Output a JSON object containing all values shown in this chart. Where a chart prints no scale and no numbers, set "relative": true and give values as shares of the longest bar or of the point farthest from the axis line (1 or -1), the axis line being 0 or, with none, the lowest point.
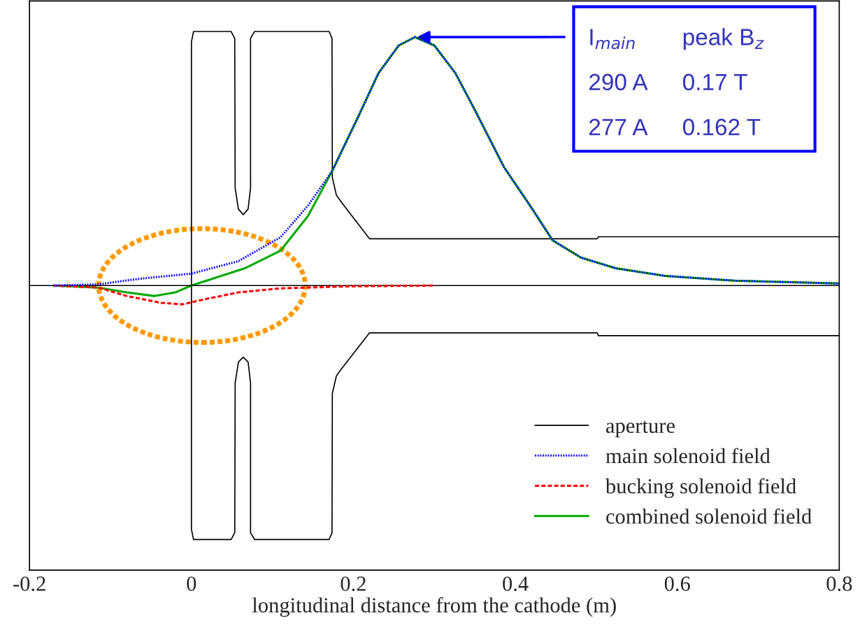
{
  "chart_data": {
    "type": "line",
    "relative": true,
    "xlabel": "longitudinal distance from the cathode (m)",
    "xlim": [
      -0.2,
      0.8
    ],
    "xticks": [
      -0.2,
      0,
      0.2,
      0.4,
      0.6,
      0.8
    ],
    "legend": "bottom right",
    "grid": false,
    "tick_labels": "x",
    "series": [
      {
        "name": "aperture",
        "color": "#000000",
        "line_style": "solid",
        "x": [
          0.8,
          0.5026,
          0.501,
          0.22,
          0.185,
          0.179,
          0.174,
          0.1736,
          0.17,
          0.078,
          0.073,
          0.073,
          0.07,
          0.064,
          0.058,
          0.054,
          0.0535,
          0.049,
          0.0026,
          0,
          0,
          0,
          0.0026,
          0.049,
          0.0535,
          0.054,
          0.058,
          0.064,
          0.07,
          0.073,
          0.073,
          0.078,
          0.17,
          0.1736,
          0.174,
          0.179,
          0.185,
          0.22,
          0.501,
          0.5026,
          0.8
        ],
        "values": [
          -0.197,
          -0.197,
          -0.186,
          -0.186,
          -0.329,
          -0.356,
          -0.425,
          -0.973,
          -1.0,
          -1.0,
          -0.973,
          -0.384,
          -0.301,
          -0.282,
          -0.301,
          -0.384,
          -0.973,
          -1.0,
          -1.0,
          -0.959,
          0,
          0.959,
          1.0,
          1.0,
          0.973,
          0.384,
          0.301,
          0.279,
          0.301,
          0.384,
          0.973,
          1.0,
          1.0,
          0.973,
          0.425,
          0.356,
          0.329,
          0.184,
          0.184,
          0.192,
          0.192
        ]
      },
      {
        "name": "main solenoid field",
        "color": "#0000ff",
        "line_style": "dotted",
        "x": [
          -0.17,
          -0.115,
          -0.063,
          0,
          0.058,
          0.11,
          0.144,
          0.174,
          0.205,
          0.231,
          0.256,
          0.276,
          0.3,
          0.326,
          0.351,
          0.386,
          0.421,
          0.446,
          0.481,
          0.524,
          0.585,
          0.671,
          0.8
        ],
        "values": [
          0,
          0.005,
          0.027,
          0.047,
          0.096,
          0.19,
          0.315,
          0.452,
          0.658,
          0.836,
          0.945,
          0.978,
          0.945,
          0.836,
          0.685,
          0.466,
          0.301,
          0.178,
          0.11,
          0.068,
          0.038,
          0.019,
          0.008
        ]
      },
      {
        "name": "bucking solenoid field",
        "color": "#ff0000",
        "line_style": "dashed",
        "x": [
          -0.17,
          -0.115,
          -0.08,
          -0.037,
          -0.011,
          0.015,
          0.058,
          0.11,
          0.196,
          0.3
        ],
        "values": [
          0,
          -0.008,
          -0.041,
          -0.068,
          -0.074,
          -0.055,
          -0.027,
          -0.011,
          -0.003,
          0
        ]
      },
      {
        "name": "combined solenoid field",
        "color": "#00aa00",
        "line_style": "solid",
        "x": [
          -0.17,
          -0.115,
          -0.08,
          -0.046,
          -0.02,
          0,
          0.032,
          0.066,
          0.11,
          0.144,
          0.174,
          0.205,
          0.231,
          0.256,
          0.276,
          0.3,
          0.326,
          0.351,
          0.386,
          0.421,
          0.446,
          0.481,
          0.524,
          0.585,
          0.671,
          0.8
        ],
        "values": [
          0,
          -0.008,
          -0.027,
          -0.041,
          -0.027,
          0,
          0.033,
          0.068,
          0.137,
          0.274,
          0.452,
          0.658,
          0.836,
          0.945,
          0.978,
          0.945,
          0.836,
          0.685,
          0.466,
          0.301,
          0.178,
          0.11,
          0.068,
          0.038,
          0.019,
          0.008
        ]
      }
    ],
    "annotations": [
      {
        "text": "I$_{main}$",
        "x": 0.276,
        "y": 0.978
      },
      "peak B$_{z}$",
      "290 A",
      "0.17 T",
      "277 A",
      "0.162 T"
    ]
  }
}
